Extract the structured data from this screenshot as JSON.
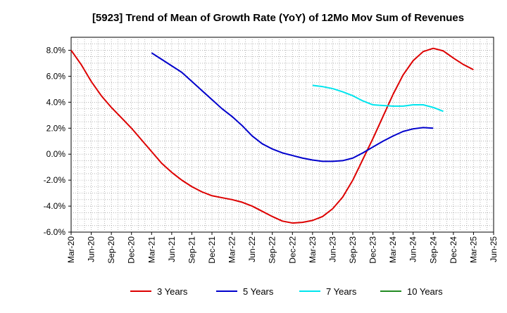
{
  "chart_data": {
    "type": "line",
    "title": "[5923]  Trend of Mean of Growth Rate (YoY) of 12Mo Mov Sum of Revenues",
    "xlabel": "",
    "ylabel": "",
    "ylim": [
      -6.0,
      9.0
    ],
    "y_ticks": [
      "8.0%",
      "6.0%",
      "4.0%",
      "2.0%",
      "0.0%",
      "-2.0%",
      "-4.0%",
      "-6.0%"
    ],
    "y_tick_values": [
      8,
      6,
      4,
      2,
      0,
      -2,
      -4,
      -6
    ],
    "x_tick_labels": [
      "Mar-20",
      "Jun-20",
      "Sep-20",
      "Dec-20",
      "Mar-21",
      "Jun-21",
      "Sep-21",
      "Dec-21",
      "Mar-22",
      "Jun-22",
      "Sep-22",
      "Dec-22",
      "Mar-23",
      "Jun-23",
      "Sep-23",
      "Dec-23",
      "Mar-24",
      "Jun-24",
      "Sep-24",
      "Dec-24",
      "Mar-25",
      "Jun-25"
    ],
    "grid": true,
    "legend_position": "bottom",
    "series": [
      {
        "name": "3 Years",
        "color": "#dd0000",
        "start_index": 0,
        "values": [
          8.0,
          6.9,
          5.6,
          4.5,
          3.6,
          2.8,
          2.0,
          1.1,
          0.2,
          -0.7,
          -1.4,
          -2.0,
          -2.5,
          -2.9,
          -3.2,
          -3.35,
          -3.5,
          -3.7,
          -4.0,
          -4.4,
          -4.8,
          -5.15,
          -5.3,
          -5.25,
          -5.1,
          -4.8,
          -4.2,
          -3.3,
          -2.0,
          -0.4,
          1.2,
          2.9,
          4.6,
          6.1,
          7.2,
          7.9,
          8.15,
          7.95,
          7.4,
          6.9,
          6.5
        ]
      },
      {
        "name": "5 Years",
        "color": "#0000cc",
        "start_index": 8,
        "values": [
          7.8,
          7.3,
          6.8,
          6.3,
          5.6,
          4.9,
          4.2,
          3.5,
          2.9,
          2.2,
          1.4,
          0.8,
          0.4,
          0.1,
          -0.1,
          -0.3,
          -0.45,
          -0.55,
          -0.55,
          -0.5,
          -0.3,
          0.1,
          0.55,
          1.0,
          1.4,
          1.75,
          1.95,
          2.05,
          2.0
        ]
      },
      {
        "name": "7 Years",
        "color": "#00e5ee",
        "start_index": 24,
        "values": [
          5.3,
          5.2,
          5.05,
          4.8,
          4.5,
          4.1,
          3.8,
          3.75,
          3.7,
          3.7,
          3.8,
          3.8,
          3.6,
          3.3
        ]
      },
      {
        "name": "10 Years",
        "color": "#228b22",
        "start_index": 0,
        "values": []
      }
    ]
  }
}
